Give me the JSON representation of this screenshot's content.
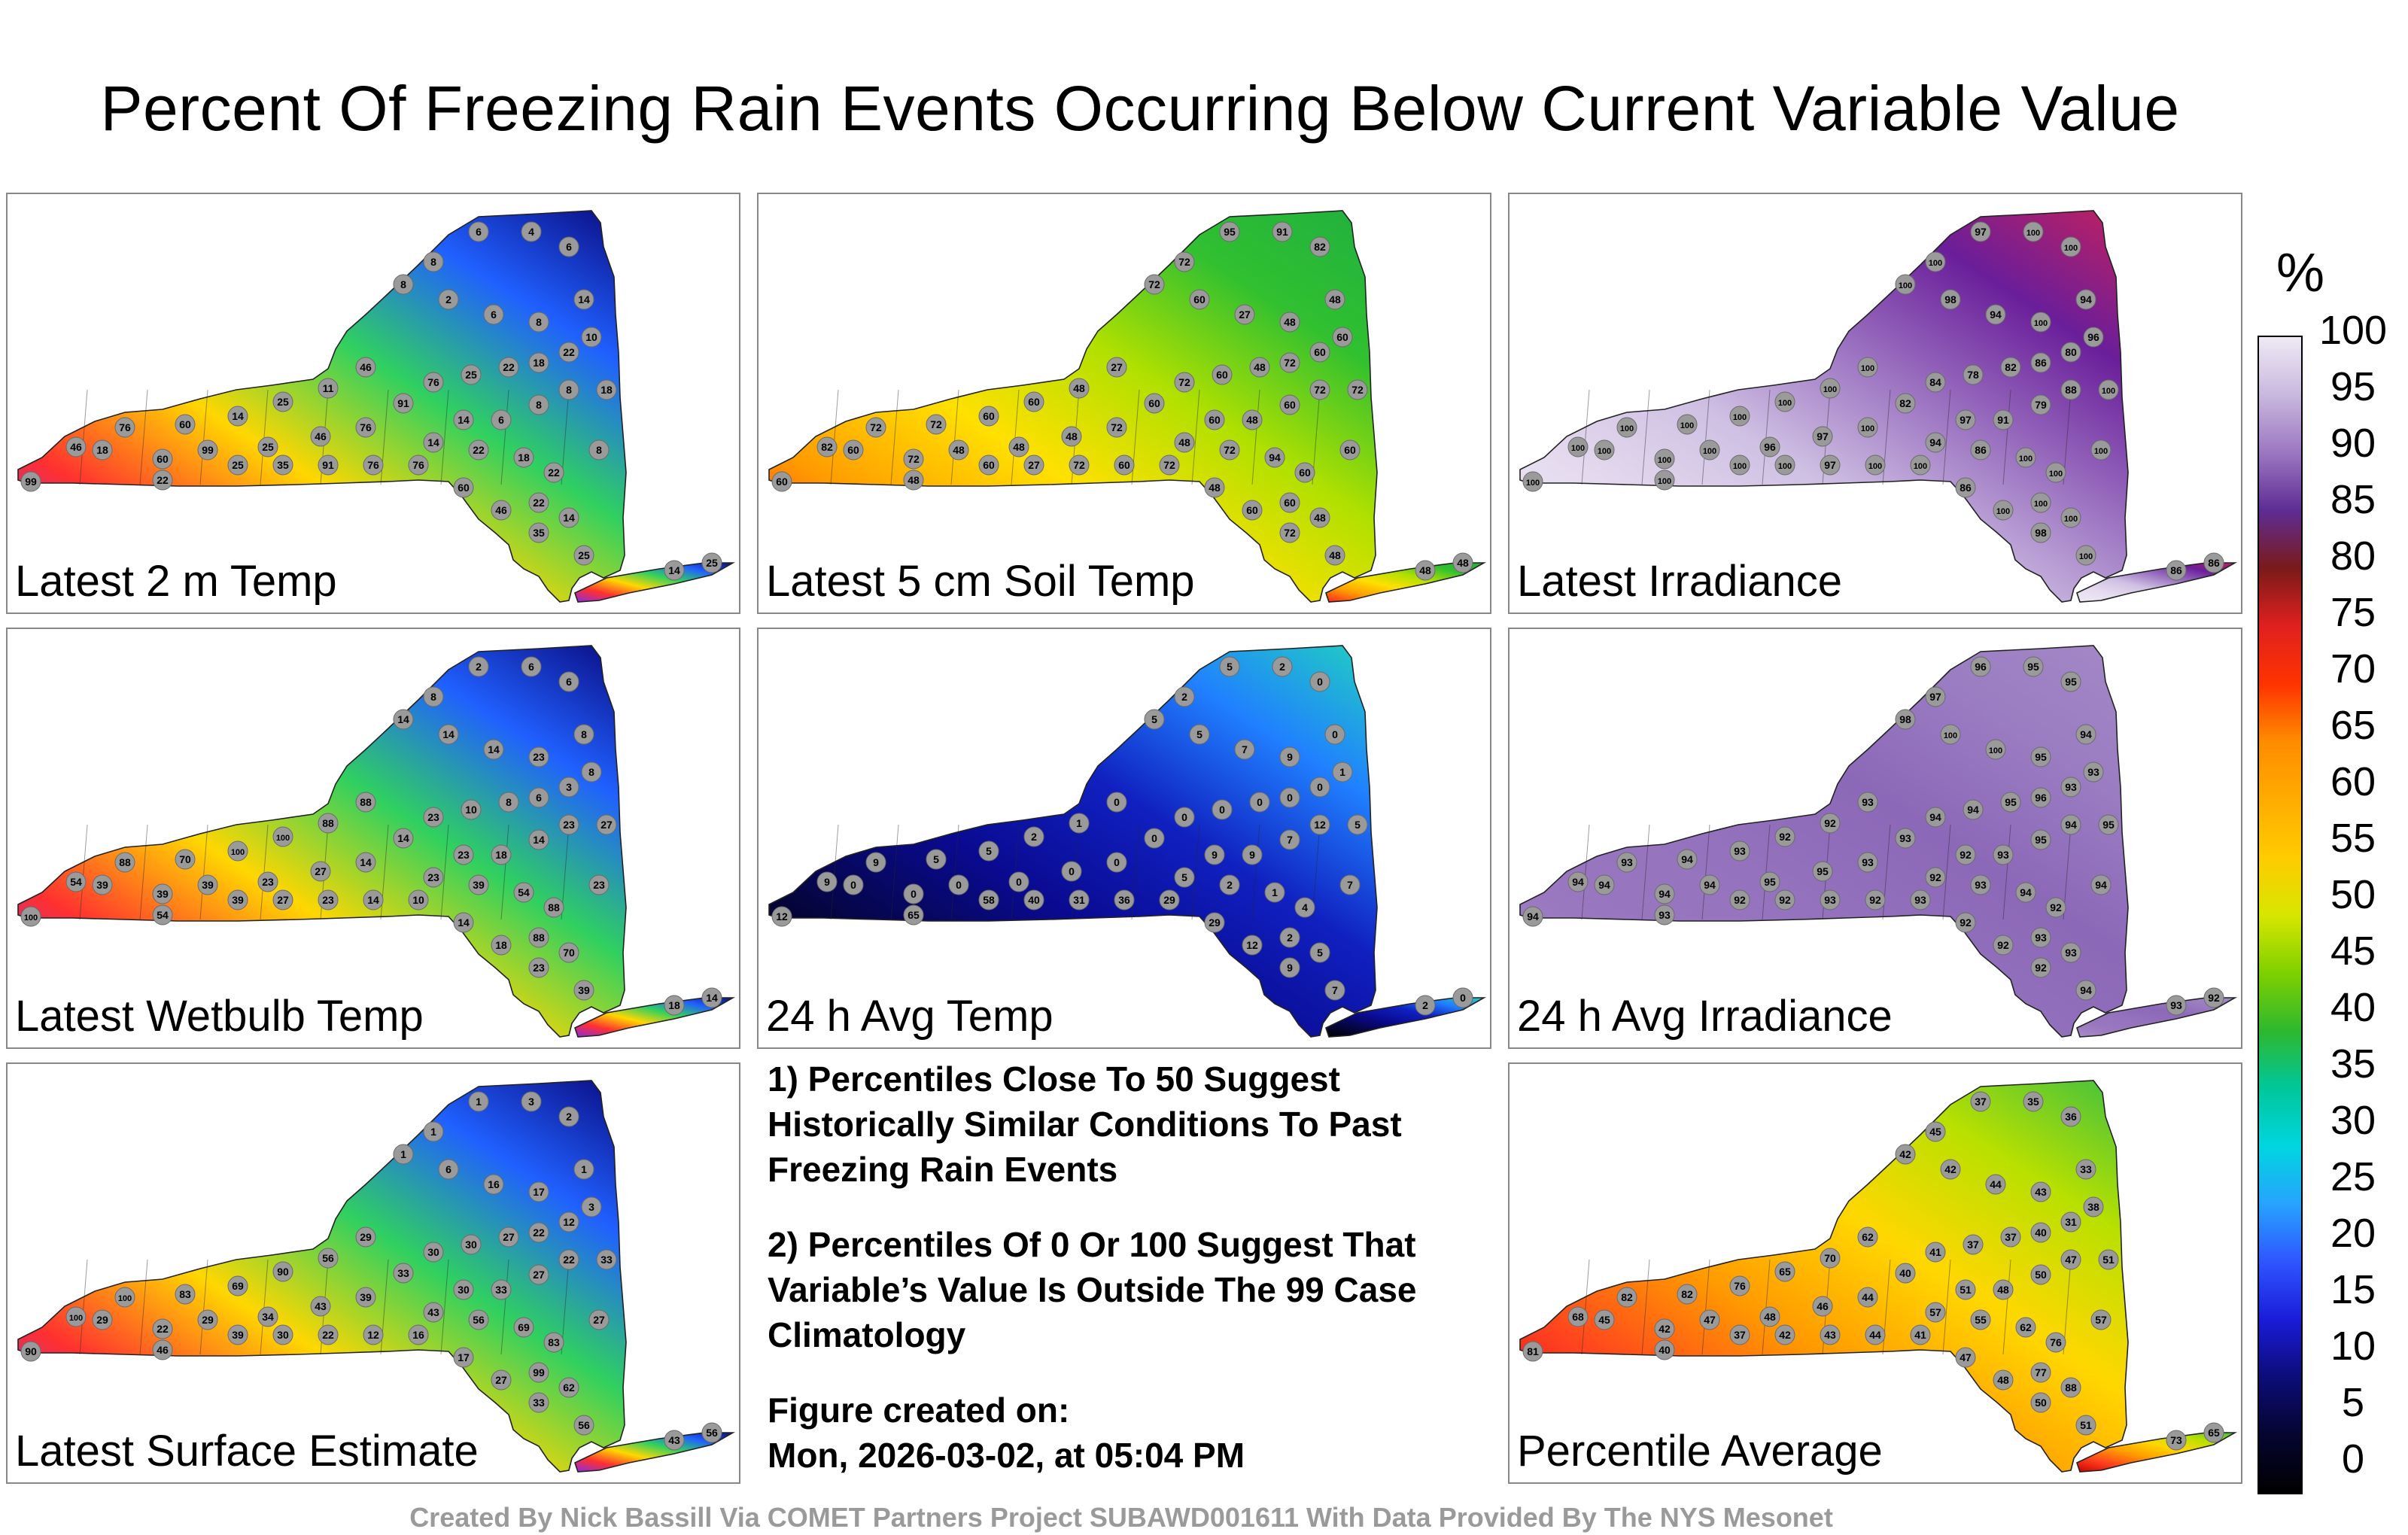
{
  "title": "Percent Of Freezing Rain Events Occurring Below Current Variable Value",
  "panels": [
    {
      "label": "Latest 2 m Temp",
      "pal": [
        "#8a2be2",
        "#ff3030",
        "#ffd700",
        "#30d060",
        "#2060ff",
        "#0a0a80"
      ],
      "values": [
        "99",
        "46",
        "76",
        "60",
        "14",
        "25",
        "11",
        "46",
        "18",
        "60",
        "99",
        "25",
        "46",
        "76",
        "91",
        "76",
        "25",
        "22",
        "18",
        "22",
        "10",
        "14",
        "6",
        "4",
        "6",
        "8",
        "8",
        "2",
        "6",
        "8",
        "8",
        "8",
        "6",
        "14",
        "14",
        "22",
        "18",
        "22",
        "22",
        "14",
        "25",
        "35",
        "46",
        "60",
        "76",
        "76",
        "91",
        "35",
        "25",
        "22",
        "8",
        "18",
        "14",
        "25"
      ]
    },
    {
      "label": "Latest 5 cm Soil Temp",
      "pal": [
        "#ff2020",
        "#ff9a00",
        "#ffe000",
        "#b0e000",
        "#30c030",
        "#20b040"
      ],
      "values": [
        "60",
        "82",
        "72",
        "72",
        "60",
        "60",
        "48",
        "27",
        "60",
        "72",
        "48",
        "48",
        "48",
        "72",
        "60",
        "72",
        "60",
        "48",
        "72",
        "60",
        "60",
        "48",
        "82",
        "91",
        "95",
        "72",
        "72",
        "60",
        "27",
        "48",
        "72",
        "60",
        "48",
        "60",
        "48",
        "72",
        "94",
        "60",
        "60",
        "48",
        "48",
        "72",
        "60",
        "48",
        "72",
        "60",
        "72",
        "27",
        "60",
        "48",
        "60",
        "72",
        "48",
        "48"
      ]
    },
    {
      "label": "Latest Irradiance",
      "pal": [
        "#efe8f5",
        "#e6dcef",
        "#cfc0e3",
        "#9a70c0",
        "#6a1e9a",
        "#c02060"
      ],
      "values": [
        "100",
        "100",
        "100",
        "100",
        "100",
        "100",
        "100",
        "100",
        "100",
        "100",
        "100",
        "96",
        "97",
        "100",
        "82",
        "84",
        "78",
        "82",
        "86",
        "80",
        "96",
        "94",
        "100",
        "100",
        "97",
        "100",
        "100",
        "98",
        "94",
        "100",
        "88",
        "79",
        "91",
        "97",
        "94",
        "86",
        "100",
        "100",
        "100",
        "100",
        "100",
        "98",
        "100",
        "86",
        "100",
        "100",
        "97",
        "100",
        "100",
        "100",
        "100",
        "100",
        "86",
        "86"
      ]
    },
    {
      "label": "Latest Wetbulb Temp",
      "pal": [
        "#8a2be2",
        "#ff3030",
        "#ffd700",
        "#30d060",
        "#2060ff",
        "#0a0a80"
      ],
      "values": [
        "100",
        "54",
        "88",
        "70",
        "100",
        "100",
        "88",
        "88",
        "39",
        "39",
        "39",
        "23",
        "27",
        "14",
        "14",
        "23",
        "10",
        "8",
        "6",
        "3",
        "8",
        "8",
        "6",
        "6",
        "2",
        "8",
        "14",
        "14",
        "14",
        "23",
        "23",
        "14",
        "18",
        "23",
        "23",
        "39",
        "54",
        "88",
        "88",
        "70",
        "39",
        "23",
        "18",
        "14",
        "10",
        "14",
        "23",
        "27",
        "39",
        "54",
        "23",
        "27",
        "18",
        "14"
      ]
    },
    {
      "label": "24 h Avg Temp",
      "pal": [
        "#000000",
        "#050540",
        "#0a0a90",
        "#1020c0",
        "#2080ff",
        "#20d0c0"
      ],
      "values": [
        "12",
        "9",
        "9",
        "5",
        "5",
        "2",
        "1",
        "0",
        "0",
        "0",
        "0",
        "0",
        "0",
        "0",
        "0",
        "0",
        "0",
        "0",
        "0",
        "0",
        "1",
        "0",
        "0",
        "2",
        "5",
        "2",
        "5",
        "5",
        "7",
        "9",
        "12",
        "7",
        "9",
        "9",
        "5",
        "2",
        "1",
        "4",
        "2",
        "5",
        "7",
        "9",
        "12",
        "29",
        "29",
        "36",
        "31",
        "40",
        "58",
        "65",
        "7",
        "5",
        "2",
        "0"
      ]
    },
    {
      "label": "24 h Avg Irradiance",
      "pal": [
        "#a88bc8",
        "#9a78c0",
        "#9472bd",
        "#8c68b8",
        "#9a7cc2",
        "#a488c6"
      ],
      "values": [
        "94",
        "94",
        "93",
        "94",
        "93",
        "92",
        "92",
        "93",
        "94",
        "94",
        "94",
        "95",
        "95",
        "93",
        "93",
        "94",
        "94",
        "95",
        "96",
        "93",
        "93",
        "94",
        "95",
        "95",
        "96",
        "97",
        "98",
        "100",
        "100",
        "95",
        "94",
        "95",
        "93",
        "92",
        "92",
        "93",
        "94",
        "92",
        "93",
        "93",
        "94",
        "92",
        "92",
        "92",
        "93",
        "92",
        "93",
        "92",
        "92",
        "93",
        "94",
        "95",
        "93",
        "92"
      ]
    },
    {
      "label": "Latest Surface Estimate",
      "pal": [
        "#8a2be2",
        "#ff3030",
        "#ffd700",
        "#30d060",
        "#2060ff",
        "#0a0a80"
      ],
      "values": [
        "90",
        "100",
        "100",
        "83",
        "69",
        "90",
        "56",
        "29",
        "29",
        "22",
        "29",
        "34",
        "43",
        "39",
        "33",
        "30",
        "30",
        "27",
        "22",
        "12",
        "3",
        "1",
        "2",
        "3",
        "1",
        "1",
        "1",
        "6",
        "16",
        "17",
        "22",
        "27",
        "33",
        "30",
        "43",
        "56",
        "69",
        "83",
        "99",
        "62",
        "56",
        "33",
        "27",
        "17",
        "16",
        "12",
        "22",
        "30",
        "39",
        "46",
        "27",
        "33",
        "43",
        "56"
      ]
    },
    {
      "label": "Percentile Average",
      "pal": [
        "#c80000",
        "#ff4020",
        "#ff9a00",
        "#ffd700",
        "#b8e000",
        "#40c040"
      ],
      "values": [
        "81",
        "68",
        "82",
        "82",
        "76",
        "65",
        "70",
        "62",
        "45",
        "42",
        "47",
        "48",
        "46",
        "44",
        "40",
        "41",
        "37",
        "37",
        "40",
        "31",
        "38",
        "33",
        "36",
        "35",
        "37",
        "45",
        "42",
        "42",
        "44",
        "43",
        "47",
        "50",
        "48",
        "51",
        "57",
        "55",
        "62",
        "76",
        "77",
        "88",
        "51",
        "50",
        "48",
        "47",
        "41",
        "44",
        "43",
        "42",
        "37",
        "40",
        "57",
        "51",
        "73",
        "65"
      ]
    },
    {
      "label": "",
      "pal": [],
      "values": []
    }
  ],
  "notes": {
    "n1": "1) Percentiles Close To 50 Suggest Historically Similar Conditions To Past Freezing Rain Events",
    "n2": "2) Percentiles Of 0 Or 100 Suggest That Variable’s Value Is Outside The 99 Case Climatology",
    "n3a": "Figure created on:",
    "n3b": "Mon, 2026-03-02, at 05:04 PM"
  },
  "colorbar": {
    "unit": "%",
    "ticks": [
      "100",
      "95",
      "90",
      "85",
      "80",
      "75",
      "70",
      "65",
      "60",
      "55",
      "50",
      "45",
      "40",
      "35",
      "30",
      "25",
      "20",
      "15",
      "10",
      "5",
      "0"
    ]
  },
  "credit": "Created By Nick Bassill Via COMET Partners Project SUBAWD001611 With Data Provided By The NYS Mesonet"
}
